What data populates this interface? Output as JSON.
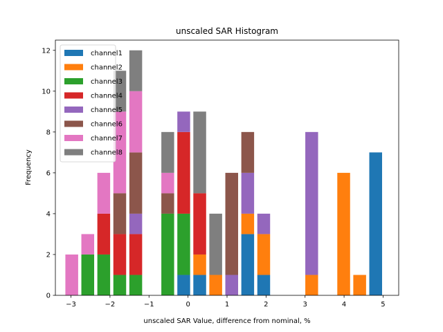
{
  "chart_data": {
    "type": "bar",
    "stacked": true,
    "title": "unscaled SAR Histogram",
    "xlabel": "unscaled SAR Value, difference from nominal, %",
    "ylabel": "Frequency",
    "xlim": [
      -3.4,
      5.4
    ],
    "ylim": [
      0,
      12.5
    ],
    "xticks": [
      -3,
      -2,
      -1,
      0,
      1,
      2,
      3,
      4,
      5
    ],
    "xtick_labels": [
      "−3",
      "−2",
      "−1",
      "0",
      "1",
      "2",
      "3",
      "4",
      "5"
    ],
    "yticks": [
      0,
      2,
      4,
      6,
      8,
      10,
      12
    ],
    "ytick_labels": [
      "0",
      "2",
      "4",
      "6",
      "8",
      "10",
      "12"
    ],
    "bin_width": 0.41,
    "bar_width_fraction": 0.8,
    "legend_position": "upper-left",
    "grid": false,
    "x": [
      -2.98,
      -2.57,
      -2.16,
      -1.75,
      -1.34,
      -0.93,
      -0.52,
      -0.11,
      0.3,
      0.71,
      1.12,
      1.53,
      1.94,
      2.35,
      2.76,
      3.17,
      3.58,
      3.99,
      4.4,
      4.81
    ],
    "series": [
      {
        "name": "channel1",
        "color": "#1f77b4",
        "values": [
          0,
          0,
          0,
          0,
          0,
          0,
          0,
          1,
          1,
          0,
          0,
          3,
          1,
          0,
          0,
          0,
          0,
          0,
          0,
          7
        ]
      },
      {
        "name": "channel2",
        "color": "#ff7f0e",
        "values": [
          0,
          0,
          0,
          0,
          0,
          0,
          0,
          0,
          1,
          1,
          0,
          1,
          2,
          0,
          0,
          1,
          0,
          6,
          1,
          0
        ]
      },
      {
        "name": "channel3",
        "color": "#2ca02c",
        "values": [
          0,
          2,
          2,
          1,
          1,
          0,
          4,
          3,
          0,
          0,
          0,
          0,
          0,
          0,
          0,
          0,
          0,
          0,
          0,
          0
        ]
      },
      {
        "name": "channel4",
        "color": "#d62728",
        "values": [
          0,
          0,
          2,
          2,
          2,
          0,
          0,
          4,
          3,
          0,
          0,
          0,
          0,
          0,
          0,
          0,
          0,
          0,
          0,
          0
        ]
      },
      {
        "name": "channel5",
        "color": "#9467bd",
        "values": [
          0,
          0,
          0,
          0,
          1,
          0,
          0,
          1,
          0,
          0,
          1,
          2,
          1,
          0,
          0,
          7,
          0,
          0,
          0,
          0
        ]
      },
      {
        "name": "channel6",
        "color": "#8c564b",
        "values": [
          0,
          0,
          0,
          2,
          3,
          0,
          1,
          0,
          0,
          0,
          5,
          2,
          0,
          0,
          0,
          0,
          0,
          0,
          0,
          0
        ]
      },
      {
        "name": "channel7",
        "color": "#e377c2",
        "values": [
          2,
          1,
          2,
          4,
          3,
          0,
          1,
          0,
          0,
          0,
          0,
          0,
          0,
          0,
          0,
          0,
          0,
          0,
          0,
          0
        ]
      },
      {
        "name": "channel8",
        "color": "#7f7f7f",
        "values": [
          0,
          0,
          0,
          2,
          2,
          0,
          2,
          0,
          4,
          3,
          0,
          0,
          0,
          0,
          0,
          0,
          0,
          0,
          0,
          0
        ]
      }
    ]
  }
}
